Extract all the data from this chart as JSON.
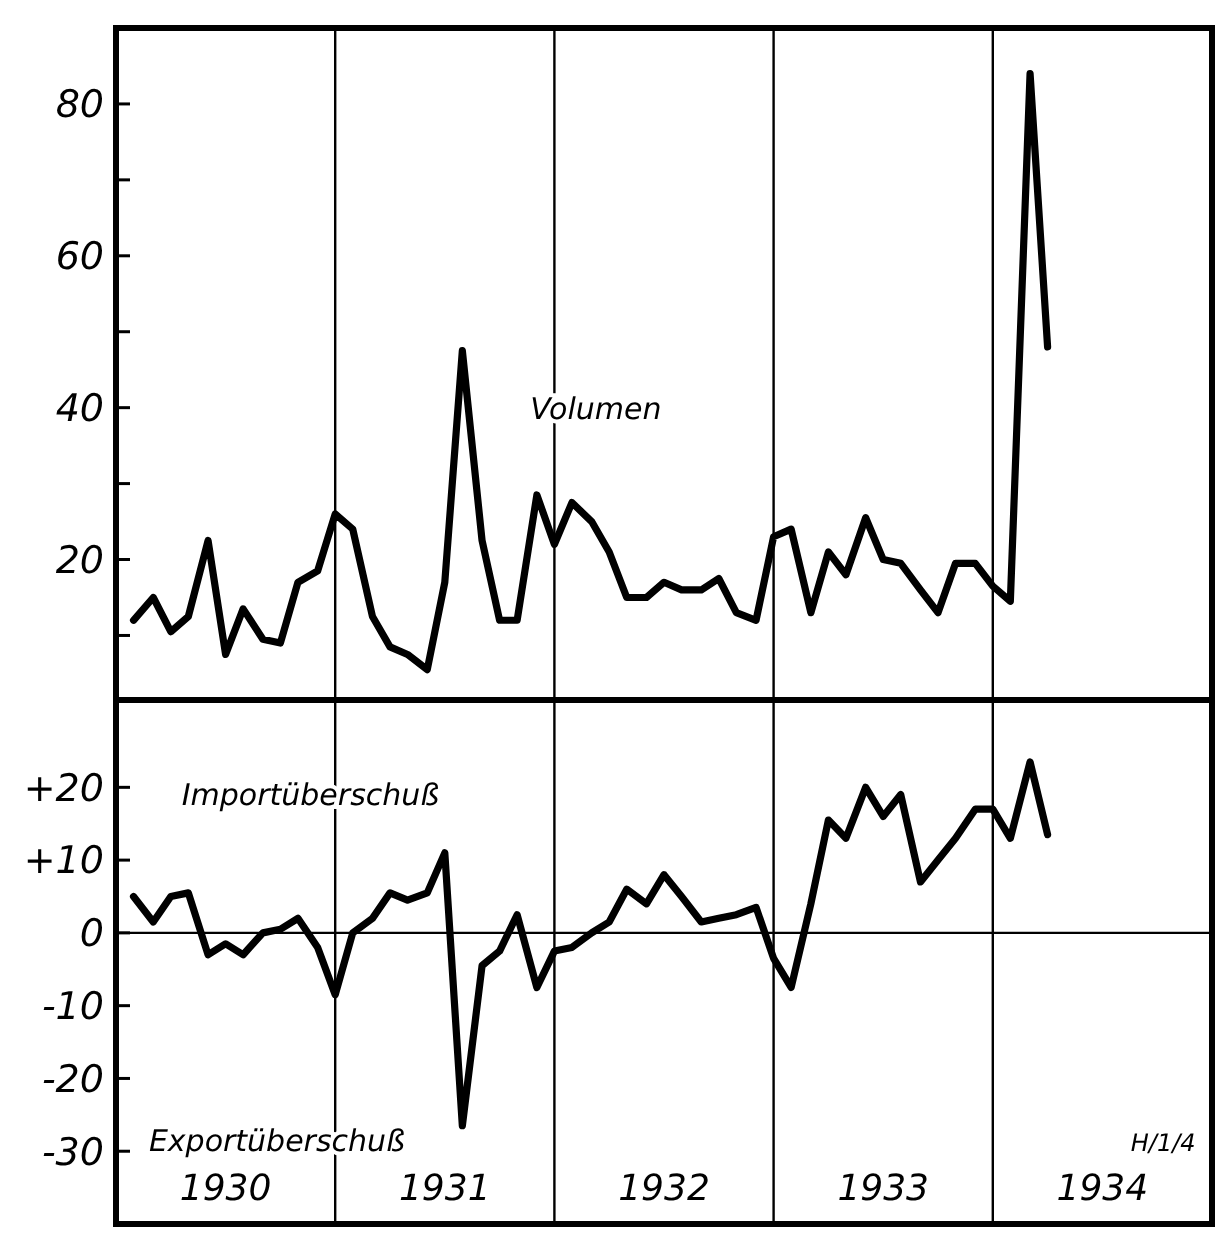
{
  "chart_data": [
    {
      "type": "line",
      "x": [
        1930.08,
        1930.17,
        1930.25,
        1930.33,
        1930.42,
        1930.5,
        1930.58,
        1930.67,
        1930.75,
        1930.83,
        1930.92,
        1931,
        1931.08,
        1931.17,
        1931.25,
        1931.33,
        1931.42,
        1931.5,
        1931.58,
        1931.67,
        1931.75,
        1931.83,
        1931.92,
        1932,
        1932.08,
        1932.17,
        1932.25,
        1932.33,
        1932.42,
        1932.5,
        1932.58,
        1932.67,
        1932.75,
        1932.83,
        1932.92,
        1933,
        1933.08,
        1933.17,
        1933.25,
        1933.33,
        1933.42,
        1933.5,
        1933.58,
        1933.67,
        1933.75,
        1933.83,
        1933.92,
        1934,
        1934.08,
        1934.17,
        1934.25
      ],
      "series": [
        {
          "name": "Volumen",
          "color": "#000000",
          "values": [
            12,
            15,
            10.5,
            12.5,
            22.5,
            7.5,
            13.5,
            9.5,
            9,
            17,
            18.5,
            26,
            24,
            12.5,
            8.5,
            7.5,
            5.5,
            17,
            47.5,
            22.5,
            12,
            12,
            28.5,
            22,
            27.5,
            25,
            21,
            15,
            15,
            17,
            16,
            16,
            17.5,
            13,
            12,
            23,
            24,
            13,
            21,
            18,
            25.5,
            20,
            19.5,
            16,
            13,
            19.5,
            19.5,
            16.5,
            14.5,
            84,
            48
          ]
        }
      ],
      "xlim": [
        1930,
        1935
      ],
      "ylim": [
        1.5,
        90
      ],
      "yticks": [
        {
          "value": 10,
          "label": null
        },
        20,
        {
          "value": 30,
          "label": null
        },
        40,
        {
          "value": 50,
          "label": null
        },
        60,
        {
          "value": 70,
          "label": null
        },
        80
      ],
      "tick_labels": "y",
      "ref_lines": [
        {
          "axis": "x",
          "value": 1931
        },
        {
          "axis": "x",
          "value": 1932
        },
        {
          "axis": "x",
          "value": 1933
        },
        {
          "axis": "x",
          "value": 1934
        }
      ]
    },
    {
      "type": "line",
      "x": [
        1930.08,
        1930.17,
        1930.25,
        1930.33,
        1930.42,
        1930.5,
        1930.58,
        1930.67,
        1930.75,
        1930.83,
        1930.92,
        1931,
        1931.08,
        1931.17,
        1931.25,
        1931.33,
        1931.42,
        1931.5,
        1931.58,
        1931.67,
        1931.75,
        1931.83,
        1931.92,
        1932,
        1932.08,
        1932.17,
        1932.25,
        1932.33,
        1932.42,
        1932.5,
        1932.58,
        1932.67,
        1932.75,
        1932.83,
        1932.92,
        1933,
        1933.08,
        1933.17,
        1933.25,
        1933.33,
        1933.42,
        1933.5,
        1933.58,
        1933.67,
        1933.75,
        1933.83,
        1933.92,
        1934,
        1934.08,
        1934.17,
        1934.25
      ],
      "series": [
        {
          "color": "#000000",
          "values": [
            5,
            1.5,
            5,
            5.5,
            -3,
            -1.5,
            -3,
            0,
            0.5,
            2,
            -2,
            -8.5,
            0,
            2,
            5.5,
            4.5,
            5.5,
            11,
            -26.5,
            -4.5,
            -2.5,
            2.5,
            -7.5,
            -2.5,
            -2,
            0,
            1.5,
            6,
            4,
            8,
            5,
            1.5,
            2,
            2.5,
            3.5,
            -3.5,
            -7.5,
            4,
            15.5,
            13,
            20,
            16,
            19,
            7,
            10,
            13,
            17,
            17,
            13,
            23.5,
            13.5
          ]
        }
      ],
      "xlim": [
        1930,
        1935
      ],
      "xticks": [
        {
          "value": 1930.5,
          "label": "1930"
        },
        {
          "value": 1931.5,
          "label": "1931"
        },
        {
          "value": 1932.5,
          "label": "1932"
        },
        {
          "value": 1933.5,
          "label": "1933"
        },
        {
          "value": 1934.5,
          "label": "1934"
        }
      ],
      "ylim": [
        -40,
        32
      ],
      "yticks": [
        {
          "value": 20,
          "label": "+20"
        },
        {
          "value": 10,
          "label": "+10"
        },
        0,
        -10,
        -20,
        -30
      ],
      "ref_lines": [
        {
          "axis": "y",
          "value": 0
        },
        {
          "axis": "x",
          "value": 1931
        },
        {
          "axis": "x",
          "value": 1932
        },
        {
          "axis": "x",
          "value": 1933
        },
        {
          "axis": "x",
          "value": 1934
        }
      ],
      "annotations": [
        "Importüberschuß",
        "Exportüberschuß",
        "H/1/4"
      ]
    }
  ]
}
